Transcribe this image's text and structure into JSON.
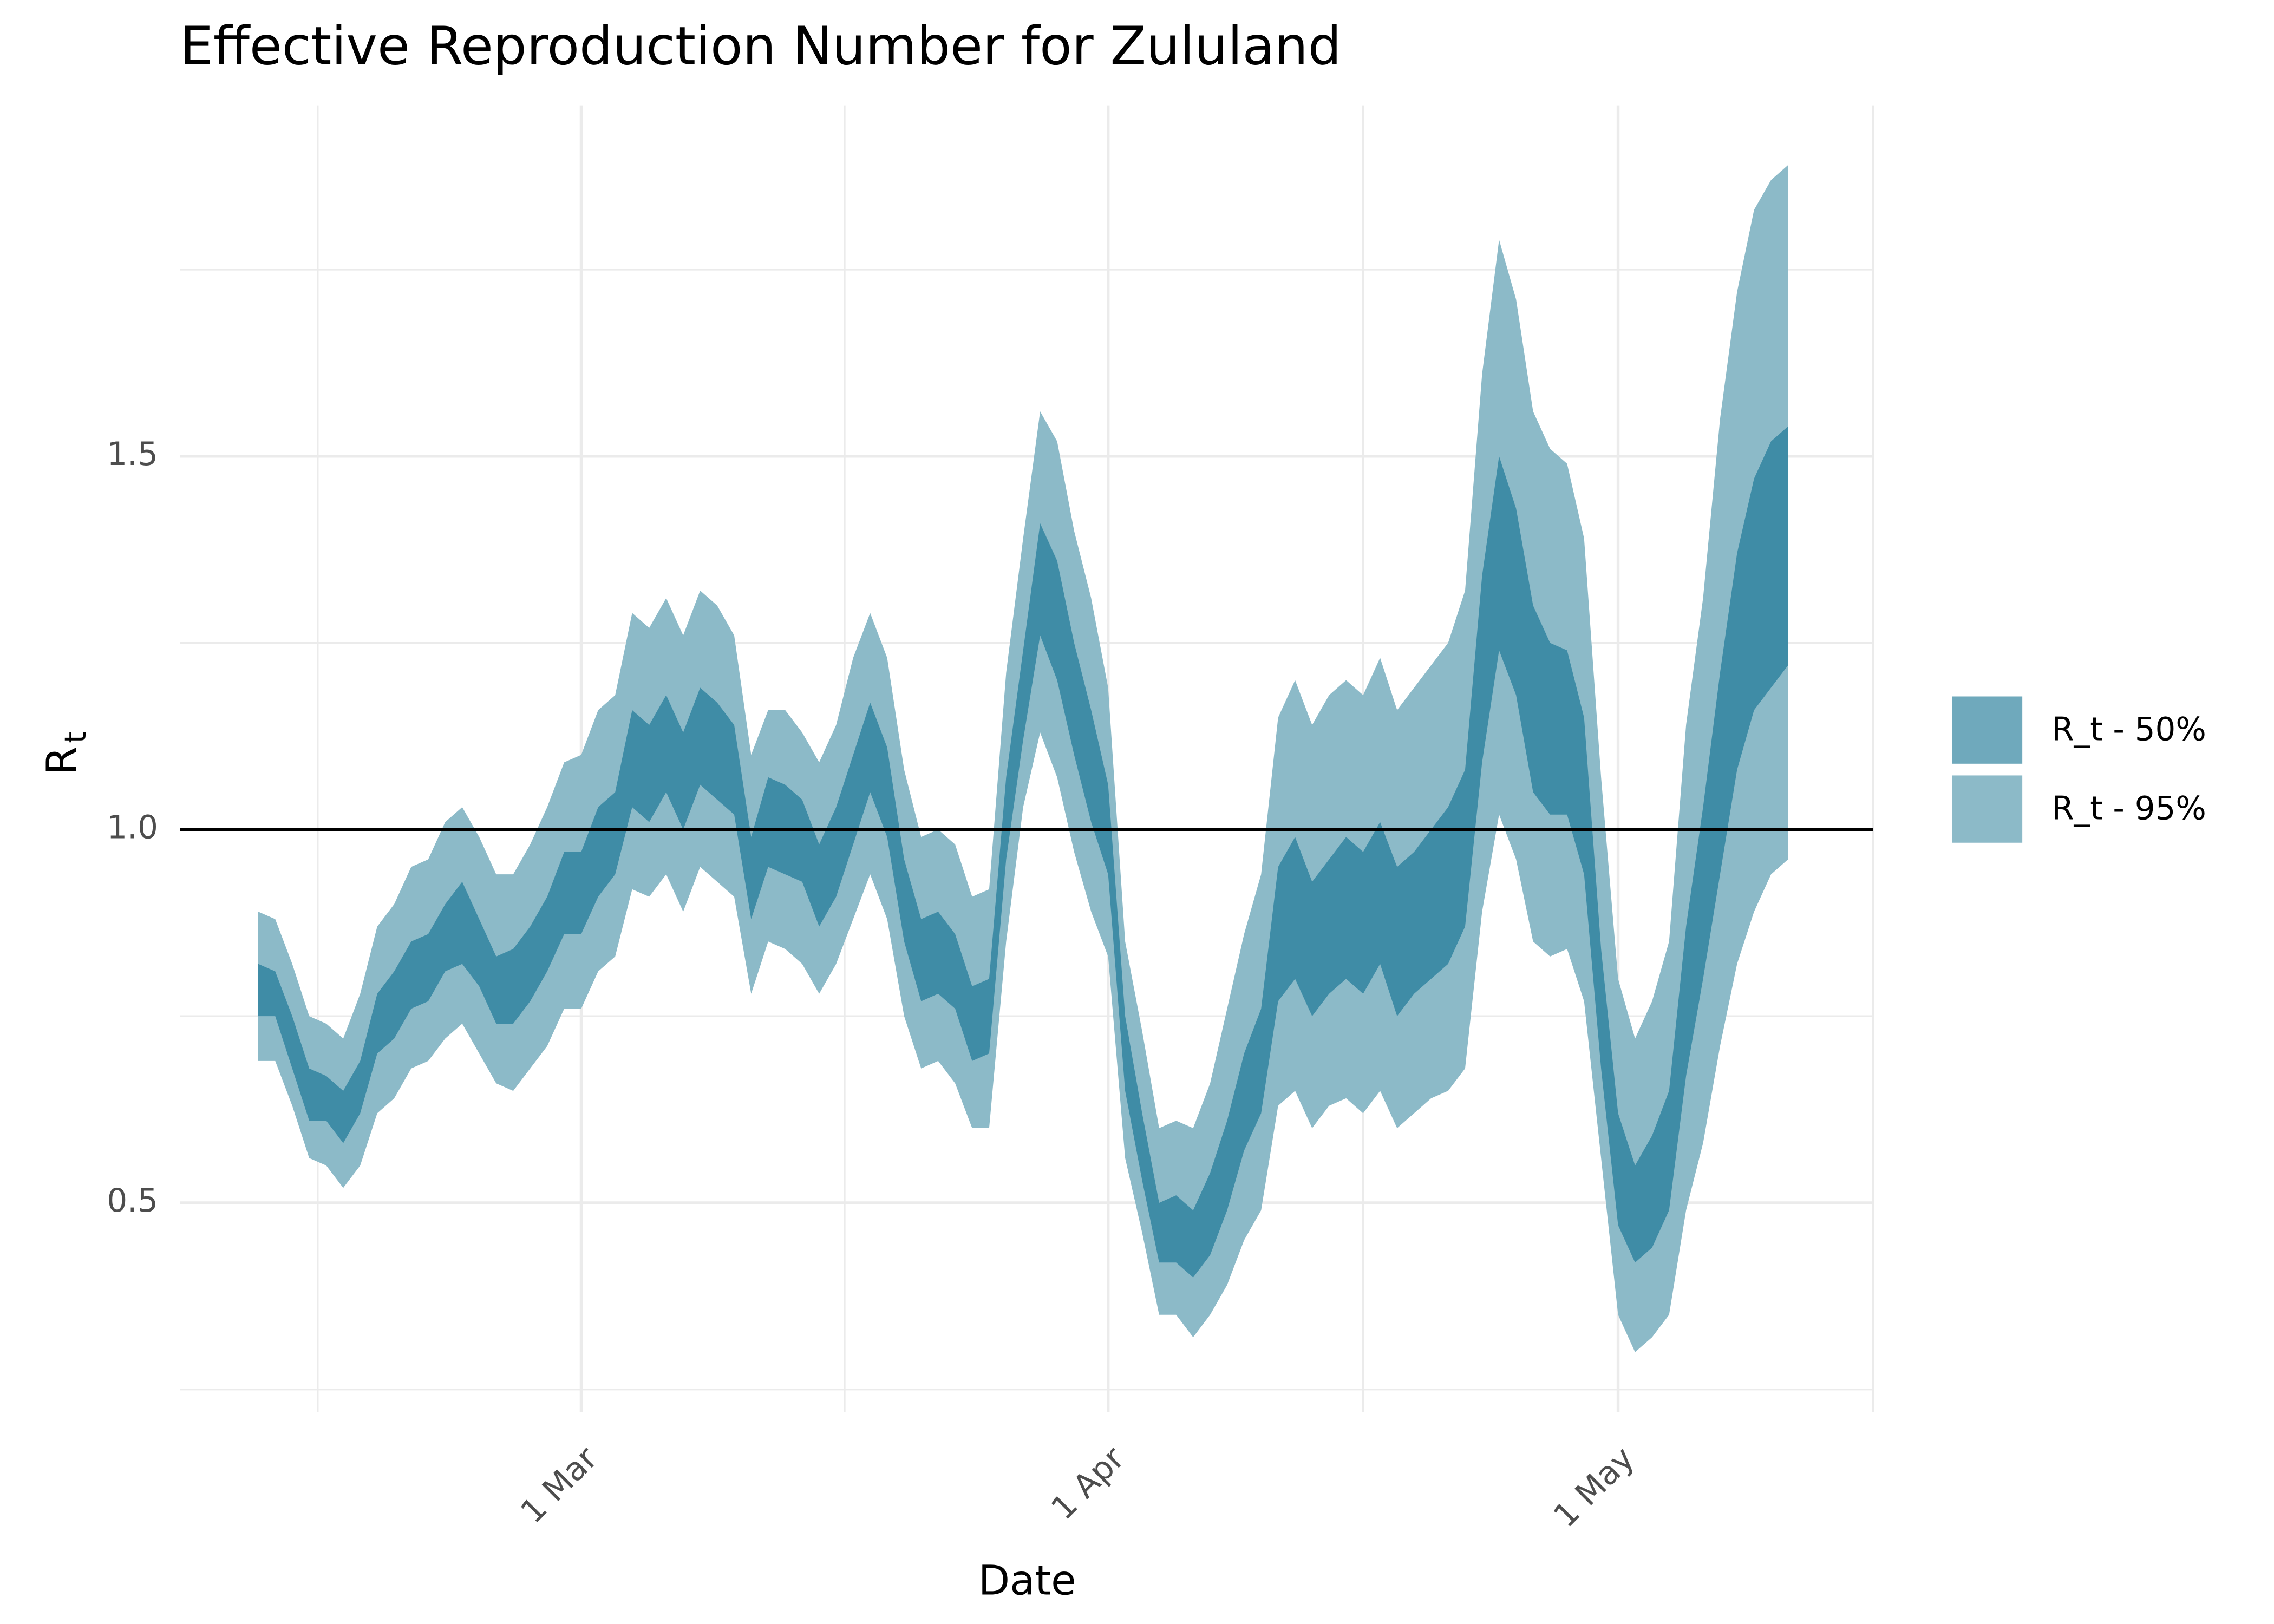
{
  "chart_data": {
    "type": "band",
    "title": "Effective Reproduction Number for Zululand",
    "x_label": "Date",
    "y_label": "R",
    "y_label_subscript": "t",
    "x": [
      "10 Feb",
      "11 Feb",
      "12 Feb",
      "13 Feb",
      "14 Feb",
      "15 Feb",
      "16 Feb",
      "17 Feb",
      "18 Feb",
      "19 Feb",
      "20 Feb",
      "21 Feb",
      "22 Feb",
      "23 Feb",
      "24 Feb",
      "25 Feb",
      "26 Feb",
      "27 Feb",
      "28 Feb",
      "1 Mar",
      "2 Mar",
      "3 Mar",
      "4 Mar",
      "5 Mar",
      "6 Mar",
      "7 Mar",
      "8 Mar",
      "9 Mar",
      "10 Mar",
      "11 Mar",
      "12 Mar",
      "13 Mar",
      "14 Mar",
      "15 Mar",
      "16 Mar",
      "17 Mar",
      "18 Mar",
      "19 Mar",
      "20 Mar",
      "21 Mar",
      "22 Mar",
      "23 Mar",
      "24 Mar",
      "25 Mar",
      "26 Mar",
      "27 Mar",
      "28 Mar",
      "29 Mar",
      "30 Mar",
      "31 Mar",
      "1 Apr",
      "2 Apr",
      "3 Apr",
      "4 Apr",
      "5 Apr",
      "6 Apr",
      "7 Apr",
      "8 Apr",
      "9 Apr",
      "10 Apr",
      "11 Apr",
      "12 Apr",
      "13 Apr",
      "14 Apr",
      "15 Apr",
      "16 Apr",
      "17 Apr",
      "18 Apr",
      "19 Apr",
      "20 Apr",
      "21 Apr",
      "22 Apr",
      "23 Apr",
      "24 Apr",
      "25 Apr",
      "26 Apr",
      "27 Apr",
      "28 Apr",
      "29 Apr",
      "30 Apr",
      "1 May",
      "2 May",
      "3 May",
      "4 May",
      "5 May",
      "6 May",
      "7 May",
      "8 May",
      "9 May",
      "10 May",
      "11 May"
    ],
    "series": [
      {
        "name": "R_t - 95%",
        "color": "#8cbac8",
        "lower": [
          0.69,
          0.69,
          0.63,
          0.56,
          0.55,
          0.52,
          0.55,
          0.62,
          0.64,
          0.68,
          0.69,
          0.72,
          0.74,
          0.7,
          0.66,
          0.65,
          0.68,
          0.71,
          0.76,
          0.76,
          0.81,
          0.83,
          0.92,
          0.91,
          0.94,
          0.89,
          0.95,
          0.93,
          0.91,
          0.78,
          0.85,
          0.84,
          0.82,
          0.78,
          0.82,
          0.88,
          0.94,
          0.88,
          0.75,
          0.68,
          0.69,
          0.66,
          0.6,
          0.6,
          0.85,
          1.03,
          1.13,
          1.07,
          0.97,
          0.89,
          0.83,
          0.56,
          0.46,
          0.35,
          0.35,
          0.32,
          0.35,
          0.39,
          0.45,
          0.49,
          0.63,
          0.65,
          0.6,
          0.63,
          0.64,
          0.62,
          0.65,
          0.6,
          0.62,
          0.64,
          0.65,
          0.68,
          0.89,
          1.02,
          0.96,
          0.85,
          0.83,
          0.84,
          0.77,
          0.56,
          0.35,
          0.3,
          0.32,
          0.35,
          0.49,
          0.58,
          0.71,
          0.82,
          0.89,
          0.94,
          0.96
        ],
        "upper": [
          0.89,
          0.88,
          0.82,
          0.75,
          0.74,
          0.72,
          0.78,
          0.87,
          0.9,
          0.95,
          0.96,
          1.01,
          1.03,
          0.99,
          0.94,
          0.94,
          0.98,
          1.03,
          1.09,
          1.1,
          1.16,
          1.18,
          1.29,
          1.27,
          1.31,
          1.26,
          1.32,
          1.3,
          1.26,
          1.1,
          1.16,
          1.16,
          1.13,
          1.09,
          1.14,
          1.23,
          1.29,
          1.23,
          1.08,
          0.99,
          1.0,
          0.98,
          0.91,
          0.92,
          1.21,
          1.39,
          1.56,
          1.52,
          1.4,
          1.31,
          1.19,
          0.85,
          0.73,
          0.6,
          0.61,
          0.6,
          0.66,
          0.76,
          0.86,
          0.94,
          1.15,
          1.2,
          1.14,
          1.18,
          1.2,
          1.18,
          1.23,
          1.16,
          1.19,
          1.22,
          1.25,
          1.32,
          1.61,
          1.79,
          1.71,
          1.56,
          1.51,
          1.49,
          1.39,
          1.07,
          0.8,
          0.72,
          0.77,
          0.85,
          1.14,
          1.31,
          1.55,
          1.72,
          1.83,
          1.87,
          1.89
        ]
      },
      {
        "name": "R_t - 50%",
        "color": "#3f8ca6",
        "lower": [
          0.75,
          0.75,
          0.68,
          0.61,
          0.61,
          0.58,
          0.62,
          0.7,
          0.72,
          0.76,
          0.77,
          0.81,
          0.82,
          0.79,
          0.74,
          0.74,
          0.77,
          0.81,
          0.86,
          0.86,
          0.91,
          0.94,
          1.03,
          1.01,
          1.05,
          1.0,
          1.06,
          1.04,
          1.02,
          0.88,
          0.95,
          0.94,
          0.93,
          0.87,
          0.91,
          0.98,
          1.05,
          0.99,
          0.85,
          0.77,
          0.78,
          0.76,
          0.69,
          0.7,
          0.96,
          1.12,
          1.26,
          1.2,
          1.1,
          1.01,
          0.94,
          0.65,
          0.53,
          0.42,
          0.42,
          0.4,
          0.43,
          0.49,
          0.57,
          0.62,
          0.77,
          0.8,
          0.75,
          0.78,
          0.8,
          0.78,
          0.82,
          0.75,
          0.78,
          0.8,
          0.82,
          0.87,
          1.09,
          1.24,
          1.18,
          1.05,
          1.02,
          1.02,
          0.94,
          0.68,
          0.47,
          0.42,
          0.44,
          0.49,
          0.67,
          0.8,
          0.94,
          1.08,
          1.16,
          1.19,
          1.22
        ],
        "upper": [
          0.82,
          0.81,
          0.75,
          0.68,
          0.67,
          0.65,
          0.69,
          0.78,
          0.81,
          0.85,
          0.86,
          0.9,
          0.93,
          0.88,
          0.83,
          0.84,
          0.87,
          0.91,
          0.97,
          0.97,
          1.03,
          1.05,
          1.16,
          1.14,
          1.18,
          1.13,
          1.19,
          1.17,
          1.14,
          0.99,
          1.07,
          1.06,
          1.04,
          0.98,
          1.03,
          1.1,
          1.17,
          1.11,
          0.96,
          0.88,
          0.89,
          0.86,
          0.79,
          0.8,
          1.07,
          1.24,
          1.41,
          1.36,
          1.25,
          1.16,
          1.06,
          0.75,
          0.62,
          0.5,
          0.51,
          0.49,
          0.54,
          0.61,
          0.7,
          0.76,
          0.95,
          0.99,
          0.93,
          0.96,
          0.99,
          0.97,
          1.01,
          0.95,
          0.97,
          1.0,
          1.03,
          1.08,
          1.34,
          1.5,
          1.43,
          1.3,
          1.25,
          1.24,
          1.15,
          0.84,
          0.62,
          0.55,
          0.59,
          0.65,
          0.87,
          1.03,
          1.21,
          1.37,
          1.47,
          1.52,
          1.54
        ]
      }
    ],
    "legend_order": [
      1,
      0
    ],
    "hline": 1,
    "hline_color": "#000000",
    "xlim": [
      "6 Feb",
      "16 May"
    ],
    "xticks": [
      "1 Mar",
      "1 Apr",
      "1 May"
    ],
    "ylim": [
      0.22,
      1.97
    ],
    "yticks": [
      {
        "value": 0.5,
        "label": "0.5"
      },
      {
        "value": 1,
        "label": "1.0"
      },
      {
        "value": 1.5,
        "label": "1.5"
      }
    ],
    "grid": true,
    "legend_position": "right"
  }
}
